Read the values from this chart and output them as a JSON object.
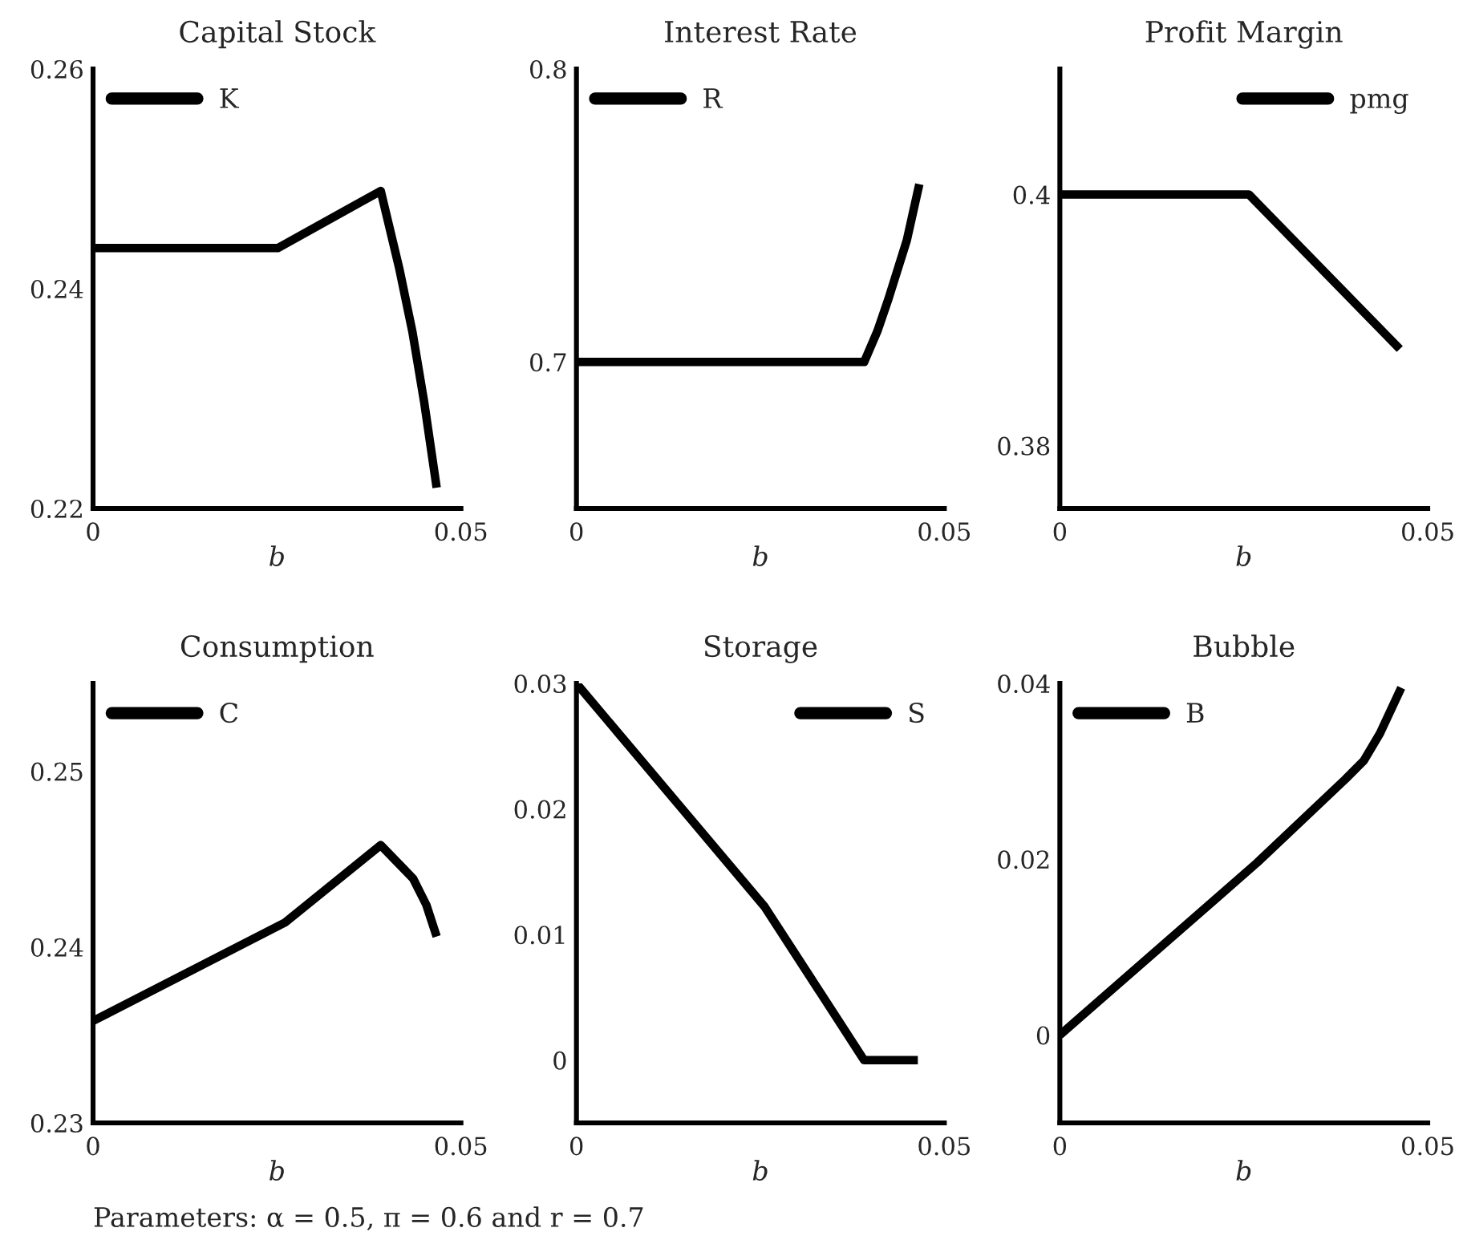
{
  "chart_data": [
    {
      "type": "line",
      "title": "Capital Stock",
      "xlabel": "b",
      "xlim": [
        0,
        0.05
      ],
      "xticks": [
        0,
        0.05
      ],
      "ylim": [
        0.22,
        0.26
      ],
      "yticks": [
        0.22,
        0.24,
        0.26
      ],
      "legend": "top left",
      "series": [
        {
          "name": "K",
          "color": "#000000",
          "x": [
            0,
            0.0251,
            0.0391,
            0.0416,
            0.0434,
            0.045,
            0.0467
          ],
          "values": [
            0.2437,
            0.2437,
            0.2489,
            0.2419,
            0.2361,
            0.2297,
            0.2219
          ]
        }
      ]
    },
    {
      "type": "line",
      "title": "Interest Rate",
      "xlabel": "b",
      "xlim": [
        0,
        0.05
      ],
      "xticks": [
        0,
        0.05
      ],
      "ylim": [
        0.65,
        0.8
      ],
      "yticks": [
        0.7,
        0.8
      ],
      "legend": "top left",
      "series": [
        {
          "name": "R",
          "color": "#000000",
          "x": [
            0,
            0.0391,
            0.0409,
            0.0424,
            0.0449,
            0.0466
          ],
          "values": [
            0.7,
            0.7,
            0.7105,
            0.7215,
            0.7415,
            0.7607
          ]
        }
      ]
    },
    {
      "type": "line",
      "title": "Profit Margin",
      "xlabel": "b",
      "xlim": [
        0,
        0.05
      ],
      "xticks": [
        0,
        0.05
      ],
      "ylim": [
        0.375,
        0.41
      ],
      "yticks": [
        0.38,
        0.4
      ],
      "legend": "top right",
      "series": [
        {
          "name": "pmg",
          "color": "#000000",
          "x": [
            0,
            0.0257,
            0.0462
          ],
          "values": [
            0.4,
            0.4,
            0.3877
          ]
        }
      ]
    },
    {
      "type": "line",
      "title": "Consumption",
      "xlabel": "b",
      "xlim": [
        0,
        0.05
      ],
      "xticks": [
        0,
        0.05
      ],
      "ylim": [
        0.23,
        0.255
      ],
      "yticks": [
        0.23,
        0.24,
        0.25
      ],
      "legend": "top left",
      "annotations": [
        "Parameters: α = 0.5, π = 0.6 and r = 0.7"
      ],
      "series": [
        {
          "name": "C",
          "color": "#000000",
          "x": [
            0,
            0.0261,
            0.0391,
            0.0435,
            0.0453,
            0.0467
          ],
          "values": [
            0.2358,
            0.2414,
            0.2458,
            0.2439,
            0.2424,
            0.2406
          ]
        }
      ]
    },
    {
      "type": "line",
      "title": "Storage",
      "xlabel": "b",
      "xlim": [
        0,
        0.05
      ],
      "xticks": [
        0,
        0.05
      ],
      "ylim": [
        -0.005,
        0.03
      ],
      "yticks": [
        0,
        0.01,
        0.02,
        0.03
      ],
      "legend": "top right",
      "series": [
        {
          "name": "S",
          "color": "#000000",
          "x": [
            0,
            0.0256,
            0.0391,
            0.0464
          ],
          "values": [
            0.03,
            0.0122,
            0,
            0
          ]
        }
      ]
    },
    {
      "type": "line",
      "title": "Bubble",
      "xlabel": "b",
      "xlim": [
        0,
        0.05
      ],
      "xticks": [
        0,
        0.05
      ],
      "ylim": [
        -0.01,
        0.04
      ],
      "yticks": [
        0,
        0.02,
        0.04
      ],
      "legend": "top left",
      "series": [
        {
          "name": "B",
          "color": "#000000",
          "x": [
            0,
            0.0268,
            0.0388,
            0.0413,
            0.0435,
            0.0464
          ],
          "values": [
            0,
            0.0196,
            0.0291,
            0.0312,
            0.0343,
            0.0395
          ]
        }
      ]
    }
  ]
}
